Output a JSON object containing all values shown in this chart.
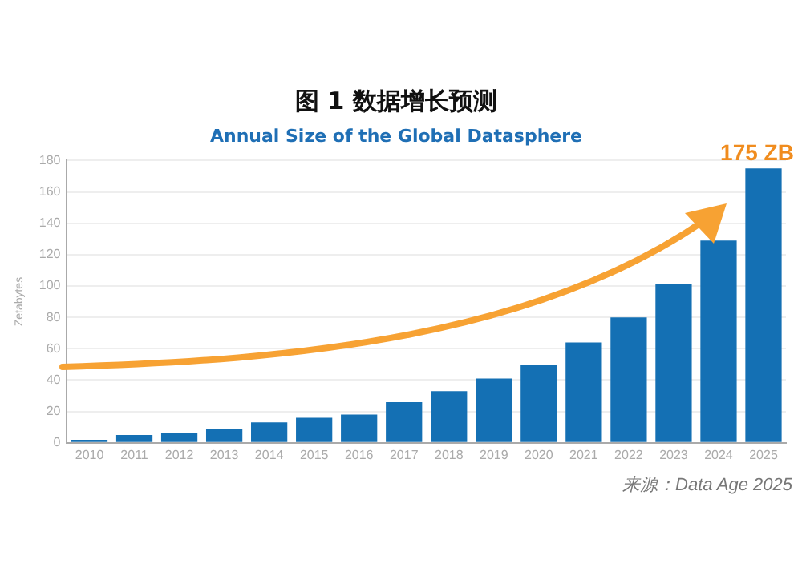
{
  "chart_data": {
    "type": "bar",
    "title": "图 1 数据增长预测",
    "subtitle": "Annual Size of the Global Datasphere",
    "ylabel": "Zetabytes",
    "categories": [
      "2010",
      "2011",
      "2012",
      "2013",
      "2014",
      "2015",
      "2016",
      "2017",
      "2018",
      "2019",
      "2020",
      "2021",
      "2022",
      "2023",
      "2024",
      "2025"
    ],
    "values": [
      2,
      5,
      6,
      9,
      13,
      16,
      18,
      26,
      33,
      41,
      50,
      64,
      80,
      101,
      129,
      175
    ],
    "color": "#1470b4",
    "ylim": [
      0,
      180
    ],
    "yticks": [
      0,
      20,
      40,
      60,
      80,
      100,
      120,
      140,
      160,
      180
    ],
    "grid": "y",
    "legend": false,
    "annotations": [
      {
        "text": "175 ZB",
        "x": "2025",
        "y": 175
      },
      "来源：Data Age 2025"
    ]
  }
}
